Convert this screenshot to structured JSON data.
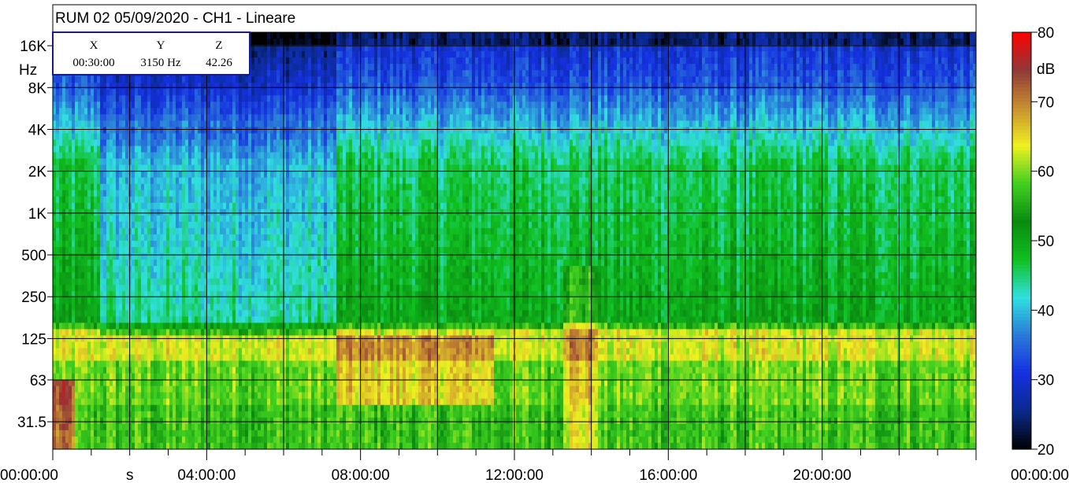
{
  "chart_data": {
    "type": "heatmap",
    "title": "RUM 02 05/09/2020 - CH1 - Lineare",
    "x_axis": {
      "label": "s",
      "range": [
        "00:00:00",
        "24:00:00"
      ],
      "tick_labels": [
        "00:00:00",
        "04:00:00",
        "08:00:00",
        "12:00:00",
        "16:00:00",
        "20:00:00",
        "00:00:00"
      ],
      "tick_hours": [
        0,
        4,
        8,
        12,
        16,
        20,
        24
      ]
    },
    "y_axis": {
      "label": "Hz",
      "scale": "log",
      "range_hz": [
        20,
        20000
      ],
      "tick_labels": [
        "16K",
        "8K",
        "4K",
        "2K",
        "1K",
        "500",
        "250",
        "125",
        "63",
        "31.5"
      ],
      "tick_values_hz": [
        16000,
        8000,
        4000,
        2000,
        1000,
        500,
        250,
        125,
        63,
        31.5
      ]
    },
    "colorbar": {
      "unit": "dB",
      "range": [
        20,
        80
      ],
      "tick_labels": [
        "80",
        "70",
        "60",
        "50",
        "40",
        "30",
        "20"
      ],
      "tick_values": [
        80,
        70,
        60,
        50,
        40,
        30,
        20
      ],
      "colors": [
        "#000000",
        "#0a2a8c",
        "#1530e0",
        "#2a7ad8",
        "#30e0e0",
        "#10c020",
        "#0a8a10",
        "#40d020",
        "#f0f020",
        "#c89030",
        "#903838",
        "#ff0000"
      ]
    },
    "cursor_readout": {
      "x_label": "X",
      "y_label": "Y",
      "z_label": "Z",
      "x_value": "00:30:00",
      "y_value": "3150 Hz",
      "z_value": "42.26"
    },
    "grid": true
  }
}
